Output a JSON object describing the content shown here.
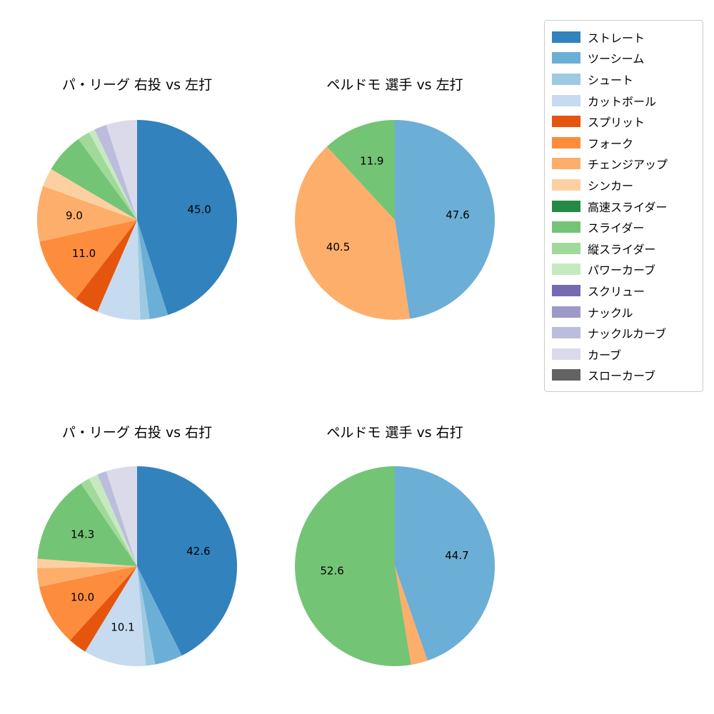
{
  "figure": {
    "background": "#ffffff"
  },
  "colors": {
    "ストレート": "#3182bd",
    "ツーシーム": "#6baed6",
    "シュート": "#9ecae1",
    "カットボール": "#c6dbef",
    "スプリット": "#e6550d",
    "フォーク": "#fd8d3c",
    "チェンジアップ": "#fdae6b",
    "シンカー": "#fdd0a2",
    "高速スライダー": "#238b45",
    "スライダー": "#74c476",
    "縦スライダー": "#a1d99b",
    "パワーカーブ": "#c7e9c0",
    "スクリュー": "#756bb1",
    "ナックル": "#9e9ac8",
    "ナックルカーブ": "#bcbddc",
    "カーブ": "#dadaeb",
    "スローカーブ": "#636363"
  },
  "legend": {
    "items": [
      "ストレート",
      "ツーシーム",
      "シュート",
      "カットボール",
      "スプリット",
      "フォーク",
      "チェンジアップ",
      "シンカー",
      "高速スライダー",
      "スライダー",
      "縦スライダー",
      "パワーカーブ",
      "スクリュー",
      "ナックル",
      "ナックルカーブ",
      "カーブ",
      "スローカーブ"
    ]
  },
  "chart_data": [
    {
      "type": "pie",
      "title": "パ・リーグ 右投 vs 左打",
      "start_angle_deg": 0,
      "direction": "clockwise",
      "label_format": "one-decimal",
      "labels_shown_for_values_at_least": 9,
      "slices": [
        {
          "label": "ストレート",
          "value": 45.0
        },
        {
          "label": "ツーシーム",
          "value": 3.0
        },
        {
          "label": "シュート",
          "value": 1.5
        },
        {
          "label": "カットボール",
          "value": 7.0
        },
        {
          "label": "スプリット",
          "value": 4.0
        },
        {
          "label": "フォーク",
          "value": 11.0
        },
        {
          "label": "チェンジアップ",
          "value": 9.0
        },
        {
          "label": "シンカー",
          "value": 3.0
        },
        {
          "label": "スライダー",
          "value": 6.5
        },
        {
          "label": "縦スライダー",
          "value": 2.0
        },
        {
          "label": "パワーカーブ",
          "value": 1.0
        },
        {
          "label": "ナックルカーブ",
          "value": 2.0
        },
        {
          "label": "カーブ",
          "value": 5.0
        }
      ]
    },
    {
      "type": "pie",
      "title": "ペルドモ 選手 vs 左打",
      "start_angle_deg": 0,
      "direction": "clockwise",
      "label_format": "one-decimal",
      "labels_shown_for_values_at_least": 9,
      "slices": [
        {
          "label": "ツーシーム",
          "value": 47.6
        },
        {
          "label": "チェンジアップ",
          "value": 40.5
        },
        {
          "label": "スライダー",
          "value": 11.9
        }
      ]
    },
    {
      "type": "pie",
      "title": "パ・リーグ 右投 vs 右打",
      "start_angle_deg": 0,
      "direction": "clockwise",
      "label_format": "one-decimal",
      "labels_shown_for_values_at_least": 9,
      "slices": [
        {
          "label": "ストレート",
          "value": 42.6
        },
        {
          "label": "ツーシーム",
          "value": 4.5
        },
        {
          "label": "シュート",
          "value": 1.5
        },
        {
          "label": "カットボール",
          "value": 10.1
        },
        {
          "label": "スプリット",
          "value": 3.0
        },
        {
          "label": "フォーク",
          "value": 10.0
        },
        {
          "label": "チェンジアップ",
          "value": 3.0
        },
        {
          "label": "シンカー",
          "value": 1.5
        },
        {
          "label": "スライダー",
          "value": 14.3
        },
        {
          "label": "縦スライダー",
          "value": 1.5
        },
        {
          "label": "パワーカーブ",
          "value": 1.5
        },
        {
          "label": "ナックルカーブ",
          "value": 1.5
        },
        {
          "label": "カーブ",
          "value": 5.0
        }
      ]
    },
    {
      "type": "pie",
      "title": "ペルドモ 選手 vs 右打",
      "start_angle_deg": 0,
      "direction": "clockwise",
      "label_format": "one-decimal",
      "labels_shown_for_values_at_least": 9,
      "slices": [
        {
          "label": "ツーシーム",
          "value": 44.7
        },
        {
          "label": "チェンジアップ",
          "value": 2.7
        },
        {
          "label": "スライダー",
          "value": 52.6
        }
      ]
    }
  ]
}
